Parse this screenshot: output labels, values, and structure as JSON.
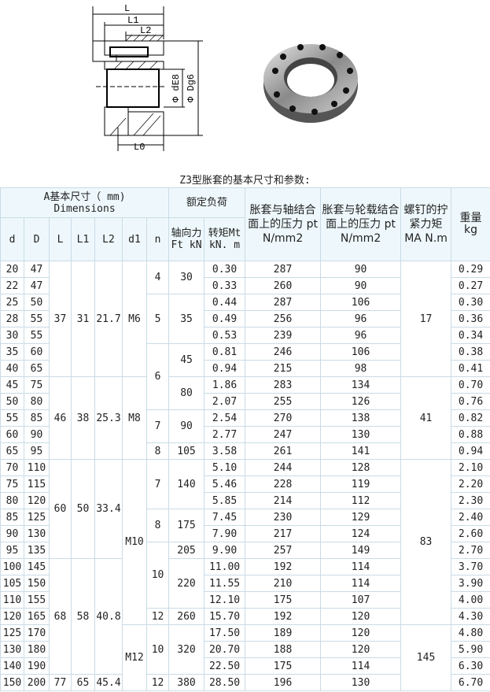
{
  "drawing_labels": {
    "L": "L",
    "L1": "L1",
    "L2": "L2",
    "L0": "L0",
    "dE8": "Φ dE8",
    "Dg6": "Φ Dg6"
  },
  "caption": "Z3型胀套的基本尺寸和参数:",
  "header": {
    "dimensions": "A基本尺寸（ mm)",
    "dimensions_en": "Dimensions",
    "rated_load": "额定负荷",
    "pt_shaft": "胀套与轴结合面上的压力 pt N/mm2",
    "pt_hub": "胀套与轮载结合面上的压力 pt N/mm2",
    "ma": "螺钉的拧紧力矩 MA N.m",
    "weight": "重量 kg",
    "cols": [
      "d",
      "D",
      "L",
      "L1",
      "L2",
      "d1",
      "n",
      "轴向力Ft kN",
      "转矩Mt kN. m"
    ]
  },
  "rows": [
    {
      "d": "20",
      "D": "47",
      "Mt": "0.30",
      "pt_shaft": "287",
      "pt_hub": "90",
      "kg": "0.29"
    },
    {
      "d": "22",
      "D": "47",
      "Mt": "0.33",
      "pt_shaft": "260",
      "pt_hub": "90",
      "kg": "0.27"
    },
    {
      "d": "25",
      "D": "50",
      "Mt": "0.44",
      "pt_shaft": "287",
      "pt_hub": "106",
      "kg": "0.30"
    },
    {
      "d": "28",
      "D": "55",
      "Mt": "0.49",
      "pt_shaft": "256",
      "pt_hub": "96",
      "kg": "0.36"
    },
    {
      "d": "30",
      "D": "55",
      "Mt": "0.53",
      "pt_shaft": "239",
      "pt_hub": "96",
      "kg": "0.34"
    },
    {
      "d": "35",
      "D": "60",
      "Mt": "0.81",
      "pt_shaft": "246",
      "pt_hub": "106",
      "kg": "0.38"
    },
    {
      "d": "40",
      "D": "65",
      "Mt": "0.94",
      "pt_shaft": "215",
      "pt_hub": "98",
      "kg": "0.41"
    },
    {
      "d": "45",
      "D": "75",
      "Mt": "1.86",
      "pt_shaft": "283",
      "pt_hub": "134",
      "kg": "0.70"
    },
    {
      "d": "50",
      "D": "80",
      "Mt": "2.07",
      "pt_shaft": "255",
      "pt_hub": "126",
      "kg": "0.76"
    },
    {
      "d": "55",
      "D": "85",
      "Mt": "2.54",
      "pt_shaft": "270",
      "pt_hub": "138",
      "kg": "0.82"
    },
    {
      "d": "60",
      "D": "90",
      "Mt": "2.77",
      "pt_shaft": "247",
      "pt_hub": "130",
      "kg": "0.88"
    },
    {
      "d": "65",
      "D": "95",
      "Mt": "3.58",
      "pt_shaft": "261",
      "pt_hub": "141",
      "kg": "0.94"
    },
    {
      "d": "70",
      "D": "110",
      "Mt": "5.10",
      "pt_shaft": "244",
      "pt_hub": "128",
      "kg": "2.10"
    },
    {
      "d": "75",
      "D": "115",
      "Mt": "5.46",
      "pt_shaft": "228",
      "pt_hub": "119",
      "kg": "2.20"
    },
    {
      "d": "80",
      "D": "120",
      "Mt": "5.85",
      "pt_shaft": "214",
      "pt_hub": "112",
      "kg": "2.30"
    },
    {
      "d": "85",
      "D": "125",
      "Mt": "7.45",
      "pt_shaft": "230",
      "pt_hub": "129",
      "kg": "2.40"
    },
    {
      "d": "90",
      "D": "130",
      "Mt": "7.90",
      "pt_shaft": "217",
      "pt_hub": "124",
      "kg": "2.60"
    },
    {
      "d": "95",
      "D": "135",
      "Mt": "9.90",
      "pt_shaft": "257",
      "pt_hub": "149",
      "kg": "2.70"
    },
    {
      "d": "100",
      "D": "145",
      "Mt": "11.00",
      "pt_shaft": "192",
      "pt_hub": "114",
      "kg": "3.70"
    },
    {
      "d": "105",
      "D": "150",
      "Mt": "11.55",
      "pt_shaft": "210",
      "pt_hub": "114",
      "kg": "3.90"
    },
    {
      "d": "110",
      "D": "155",
      "Mt": "12.10",
      "pt_shaft": "175",
      "pt_hub": "107",
      "kg": "4.00"
    },
    {
      "d": "120",
      "D": "165",
      "Mt": "15.70",
      "pt_shaft": "192",
      "pt_hub": "120",
      "kg": "4.30"
    },
    {
      "d": "125",
      "D": "170",
      "Mt": "17.50",
      "pt_shaft": "189",
      "pt_hub": "120",
      "kg": "4.80"
    },
    {
      "d": "130",
      "D": "180",
      "Mt": "20.70",
      "pt_shaft": "188",
      "pt_hub": "120",
      "kg": "5.90"
    },
    {
      "d": "140",
      "D": "190",
      "Mt": "22.50",
      "pt_shaft": "175",
      "pt_hub": "114",
      "kg": "6.30"
    },
    {
      "d": "150",
      "D": "200",
      "Mt": "28.50",
      "pt_shaft": "196",
      "pt_hub": "130",
      "kg": "6.70"
    }
  ],
  "groups": {
    "L": [
      {
        "v": "37",
        "span": 7
      },
      {
        "v": "46",
        "span": 5
      },
      {
        "v": "60",
        "span": 6
      },
      {
        "v": "68",
        "span": 7
      },
      {
        "v": "77",
        "span": 1
      }
    ],
    "L1": [
      {
        "v": "31",
        "span": 7
      },
      {
        "v": "38",
        "span": 5
      },
      {
        "v": "50",
        "span": 6
      },
      {
        "v": "58",
        "span": 7
      },
      {
        "v": "65",
        "span": 1
      }
    ],
    "L2": [
      {
        "v": "21.7",
        "span": 7
      },
      {
        "v": "25.3",
        "span": 5
      },
      {
        "v": "33.4",
        "span": 6
      },
      {
        "v": "40.8",
        "span": 7
      },
      {
        "v": "45.4",
        "span": 1
      }
    ],
    "d1": [
      {
        "v": "M6",
        "span": 7
      },
      {
        "v": "M8",
        "span": 5
      },
      {
        "v": "M10",
        "span": 10
      },
      {
        "v": "M12",
        "span": 4
      }
    ],
    "n": [
      {
        "v": "4",
        "span": 2
      },
      {
        "v": "5",
        "span": 3
      },
      {
        "v": "6",
        "span": 4
      },
      {
        "v": "7",
        "span": 2
      },
      {
        "v": "8",
        "span": 1
      },
      {
        "v": "7",
        "span": 3
      },
      {
        "v": "8",
        "span": 2
      },
      {
        "v": "10",
        "span": 4
      },
      {
        "v": "12",
        "span": 1
      },
      {
        "v": "10",
        "span": 3
      },
      {
        "v": "12",
        "span": 1
      }
    ],
    "Ft": [
      {
        "v": "30",
        "span": 2
      },
      {
        "v": "35",
        "span": 3
      },
      {
        "v": "45",
        "span": 2
      },
      {
        "v": "80",
        "span": 2
      },
      {
        "v": "90",
        "span": 2
      },
      {
        "v": "105",
        "span": 1
      },
      {
        "v": "140",
        "span": 3
      },
      {
        "v": "175",
        "span": 2
      },
      {
        "v": "205",
        "span": 1
      },
      {
        "v": "220",
        "span": 3
      },
      {
        "v": "260",
        "span": 1
      },
      {
        "v": "320",
        "span": 3
      },
      {
        "v": "380",
        "span": 1
      }
    ],
    "MA": [
      {
        "v": "17",
        "span": 7
      },
      {
        "v": "41",
        "span": 5
      },
      {
        "v": "83",
        "span": 10
      },
      {
        "v": "145",
        "span": 4
      }
    ]
  }
}
